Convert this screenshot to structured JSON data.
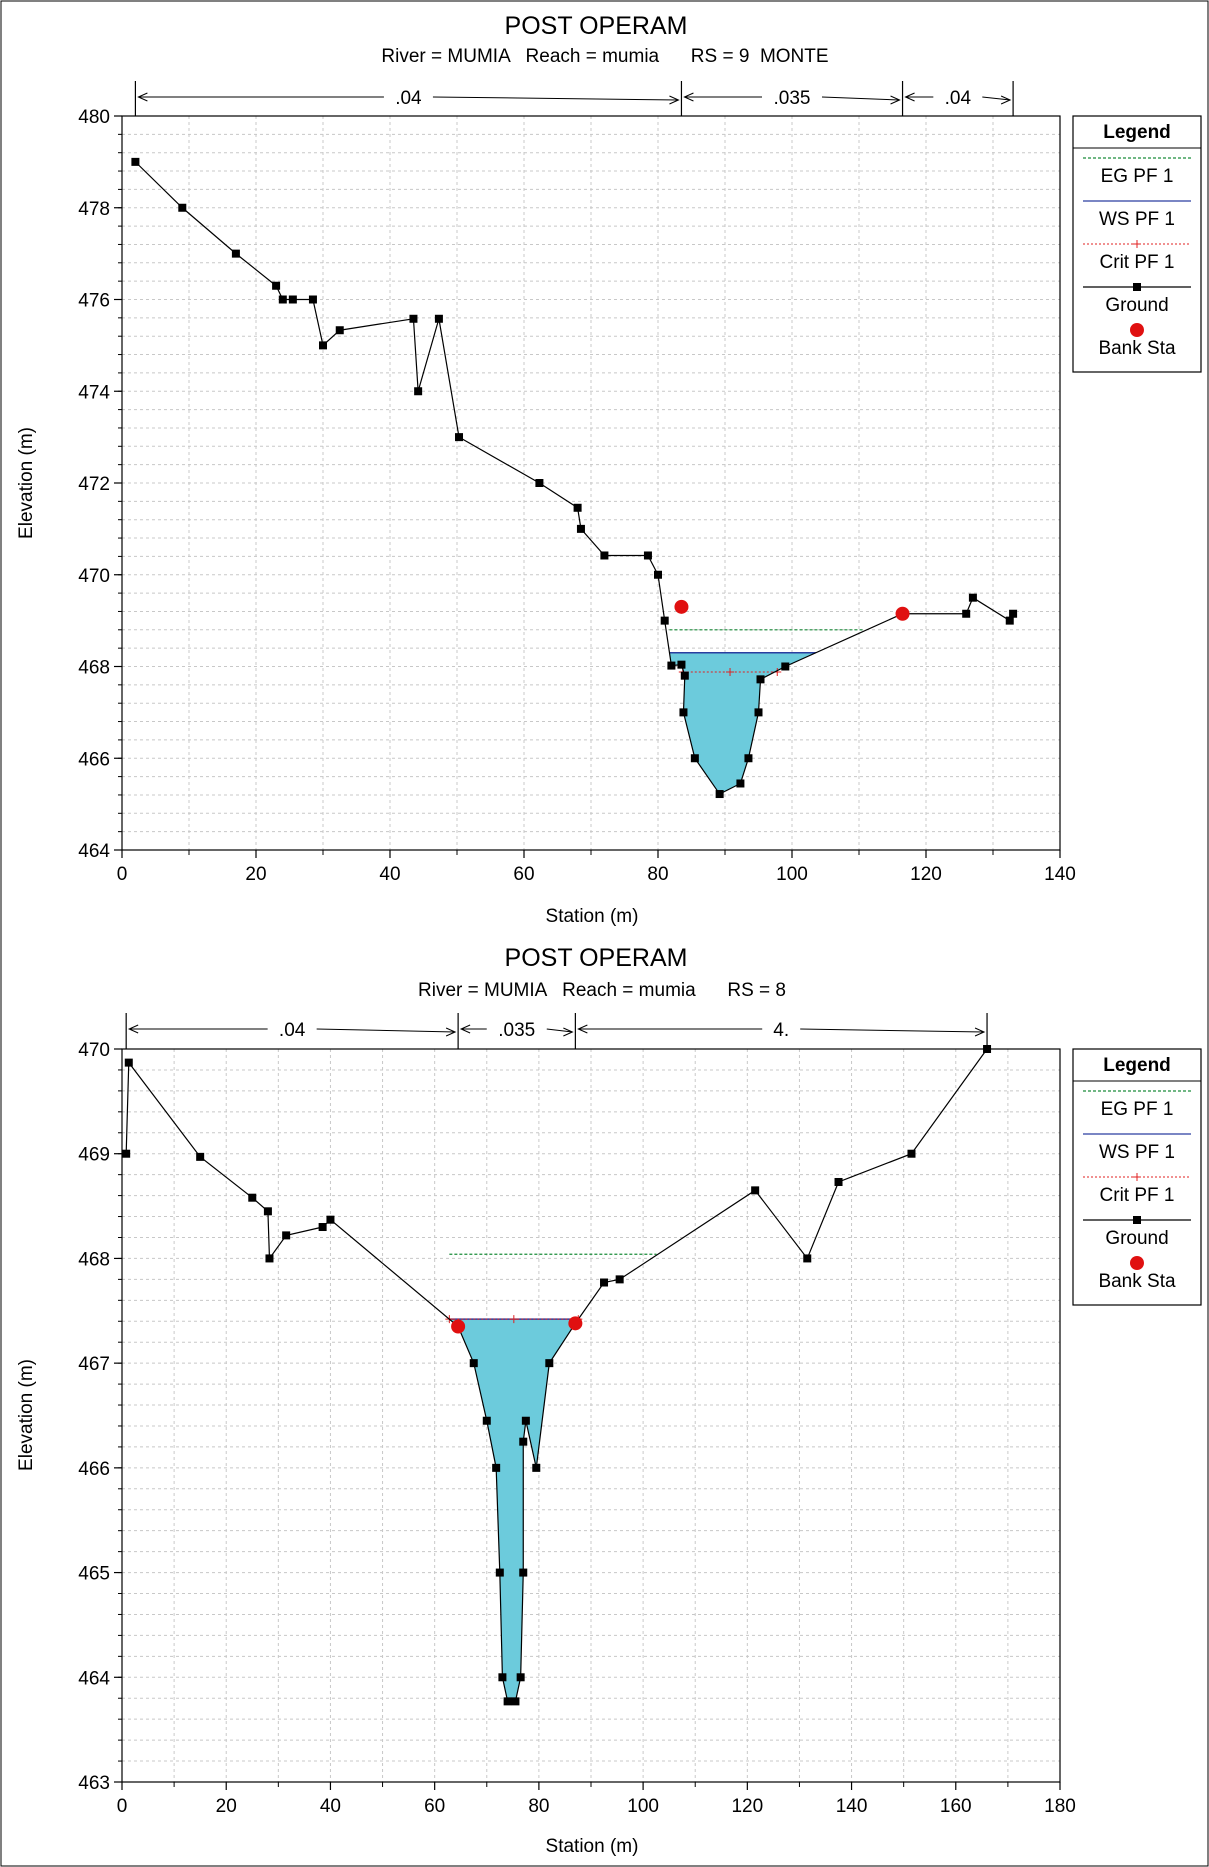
{
  "chart_data": [
    {
      "type": "line",
      "title": "POST OPERAM",
      "subtitle": "River = MUMIA   Reach = mumia      RS = 9  MONTE",
      "xlabel": "Station (m)",
      "ylabel": "Elevation (m)",
      "xlim": [
        0,
        140
      ],
      "ylim": [
        464,
        480
      ],
      "xticks": [
        0,
        20,
        40,
        60,
        80,
        100,
        120,
        140
      ],
      "yticks": [
        464,
        466,
        468,
        470,
        472,
        474,
        476,
        478,
        480
      ],
      "grid": true,
      "legend_position": "right",
      "legend": {
        "title": "Legend",
        "entries": [
          "EG PF 1",
          "WS PF 1",
          "Crit PF 1",
          "Ground",
          "Bank Sta"
        ]
      },
      "manning_n": [
        {
          "label": ".04",
          "from": 2,
          "to": 83.5
        },
        {
          "label": ".035",
          "from": 83.5,
          "to": 116.5
        },
        {
          "label": ".04",
          "from": 116.5,
          "to": 133
        }
      ],
      "ground": [
        [
          2,
          479
        ],
        [
          9,
          478
        ],
        [
          17,
          477
        ],
        [
          23,
          476.3
        ],
        [
          24,
          476
        ],
        [
          25.5,
          476
        ],
        [
          28.5,
          476
        ],
        [
          30,
          475
        ],
        [
          32.5,
          475.33
        ],
        [
          43.5,
          475.58
        ],
        [
          44.2,
          474
        ],
        [
          47.3,
          475.58
        ],
        [
          50.3,
          473
        ],
        [
          62.3,
          472
        ],
        [
          68,
          471.46
        ],
        [
          68.5,
          471
        ],
        [
          72,
          470.42
        ],
        [
          78.5,
          470.42
        ],
        [
          80,
          470
        ],
        [
          81,
          469
        ],
        [
          82,
          468.02
        ],
        [
          83.5,
          468.04
        ],
        [
          84,
          467.8
        ],
        [
          83.8,
          467
        ],
        [
          85.5,
          466
        ],
        [
          89.2,
          465.22
        ],
        [
          92.3,
          465.45
        ],
        [
          93.5,
          466
        ],
        [
          95,
          467
        ],
        [
          95.3,
          467.72
        ],
        [
          99,
          468
        ],
        [
          116.5,
          469.15
        ],
        [
          126,
          469.15
        ],
        [
          127,
          469.5
        ],
        [
          132.5,
          469
        ],
        [
          133,
          469.15
        ]
      ],
      "water_surface": 468.3,
      "energy_grade": 468.8,
      "critical_depth": 467.88,
      "bank_stations": [
        [
          83.5,
          469.3
        ],
        [
          116.5,
          469.15
        ]
      ]
    },
    {
      "type": "line",
      "title": "POST OPERAM",
      "subtitle": "River = MUMIA   Reach = mumia      RS = 8",
      "xlabel": "Station (m)",
      "ylabel": "Elevation (m)",
      "xlim": [
        0,
        180
      ],
      "ylim": [
        463,
        470
      ],
      "xticks": [
        0,
        20,
        40,
        60,
        80,
        100,
        120,
        140,
        160,
        180
      ],
      "yticks": [
        463,
        464,
        465,
        466,
        467,
        468,
        469,
        470
      ],
      "grid": true,
      "legend_position": "right",
      "legend": {
        "title": "Legend",
        "entries": [
          "EG PF 1",
          "WS PF 1",
          "Crit PF 1",
          "Ground",
          "Bank Sta"
        ]
      },
      "manning_n": [
        {
          "label": ".04",
          "from": 0.8,
          "to": 64.5
        },
        {
          "label": ".035",
          "from": 64.5,
          "to": 87
        },
        {
          "label": "4.",
          "from": 87,
          "to": 166
        }
      ],
      "ground": [
        [
          0.8,
          469
        ],
        [
          1.3,
          469.87
        ],
        [
          15,
          468.97
        ],
        [
          25,
          468.58
        ],
        [
          28,
          468.45
        ],
        [
          28.3,
          468
        ],
        [
          31.5,
          468.22
        ],
        [
          38.5,
          468.3
        ],
        [
          40,
          468.37
        ],
        [
          64.5,
          467.35
        ],
        [
          67.5,
          467
        ],
        [
          70,
          466.45
        ],
        [
          71.8,
          466
        ],
        [
          72.5,
          465
        ],
        [
          73,
          464
        ],
        [
          74,
          463.77
        ],
        [
          75.5,
          463.77
        ],
        [
          76.5,
          464
        ],
        [
          77,
          465
        ],
        [
          77,
          466.25
        ],
        [
          77.5,
          466.45
        ],
        [
          79.5,
          466
        ],
        [
          82,
          467
        ],
        [
          87,
          467.38
        ],
        [
          92.5,
          467.77
        ],
        [
          95.5,
          467.8
        ],
        [
          121.5,
          468.65
        ],
        [
          131.5,
          468
        ],
        [
          137.5,
          468.73
        ],
        [
          151.5,
          469
        ],
        [
          166,
          470
        ]
      ],
      "water_surface": 467.42,
      "energy_grade": 468.04,
      "critical_depth": 467.42,
      "bank_stations": [
        [
          64.5,
          467.35
        ],
        [
          87,
          467.38
        ]
      ]
    }
  ]
}
